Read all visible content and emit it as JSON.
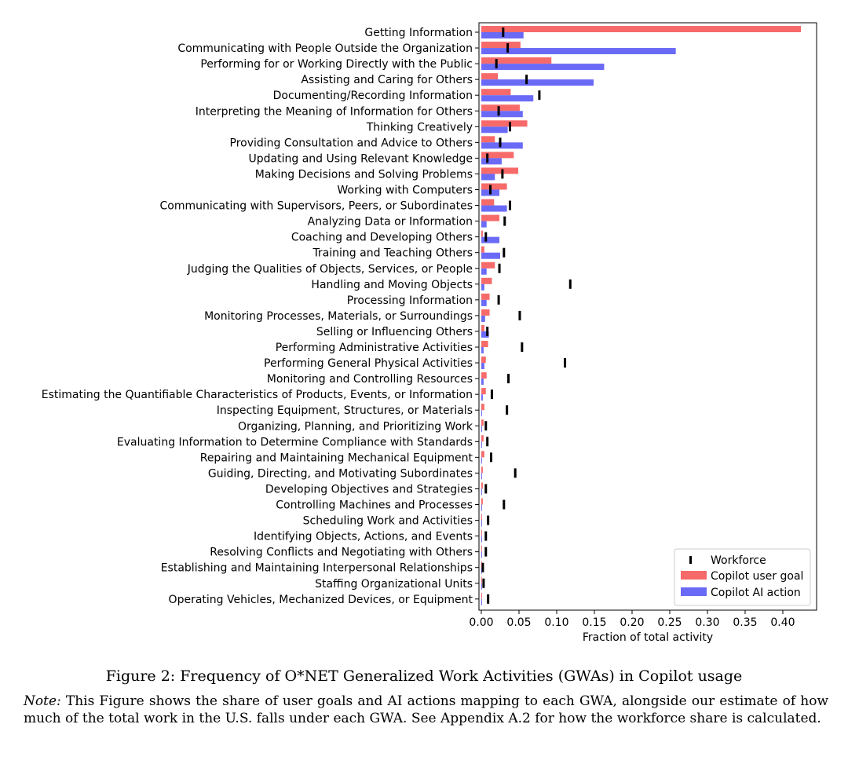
{
  "chart_data": {
    "type": "bar",
    "orientation": "horizontal",
    "xlabel": "Fraction of total activity",
    "xlim": [
      0,
      0.45
    ],
    "xticks": [
      "0.00",
      "0.05",
      "0.10",
      "0.15",
      "0.20",
      "0.25",
      "0.30",
      "0.35",
      "0.40"
    ],
    "legend": {
      "placement": "lower-right",
      "entries": [
        "Workforce",
        "Copilot user goal",
        "Copilot AI action"
      ]
    },
    "colors": {
      "user_goal": "#f76a6a",
      "ai_action": "#6a6af7",
      "workforce": "#000000"
    },
    "categories": [
      "Getting Information",
      "Communicating with People Outside the Organization",
      "Performing for or Working Directly with the Public",
      "Assisting and Caring for Others",
      "Documenting/Recording Information",
      "Interpreting the Meaning of Information for Others",
      "Thinking Creatively",
      "Providing Consultation and Advice to Others",
      "Updating and Using Relevant Knowledge",
      "Making Decisions and Solving Problems",
      "Working with Computers",
      "Communicating with Supervisors, Peers, or Subordinates",
      "Analyzing Data or Information",
      "Coaching and Developing Others",
      "Training and Teaching Others",
      "Judging the Qualities of Objects, Services, or People",
      "Handling and Moving Objects",
      "Processing Information",
      "Monitoring Processes, Materials, or Surroundings",
      "Selling or Influencing Others",
      "Performing Administrative Activities",
      "Performing General Physical Activities",
      "Monitoring and Controlling Resources",
      "Estimating the Quantifiable Characteristics of Products, Events, or Information",
      "Inspecting Equipment, Structures, or Materials",
      "Organizing, Planning, and Prioritizing Work",
      "Evaluating Information to Determine Compliance with Standards",
      "Repairing and Maintaining Mechanical Equipment",
      "Guiding, Directing, and Motivating Subordinates",
      "Developing Objectives and Strategies",
      "Controlling Machines and Processes",
      "Scheduling Work and Activities",
      "Identifying Objects, Actions, and Events",
      "Resolving Conflicts and Negotiating with Others",
      "Establishing and Maintaining Interpersonal Relationships",
      "Staffing Organizational Units",
      "Operating Vehicles, Mechanized Devices, or Equipment"
    ],
    "series": [
      {
        "name": "Copilot user goal",
        "values": [
          0.424,
          0.052,
          0.093,
          0.022,
          0.039,
          0.051,
          0.061,
          0.018,
          0.043,
          0.049,
          0.034,
          0.017,
          0.024,
          0.002,
          0.004,
          0.018,
          0.014,
          0.011,
          0.011,
          0.004,
          0.009,
          0.006,
          0.007,
          0.006,
          0.004,
          0.003,
          0.003,
          0.004,
          0.002,
          0.002,
          0.002,
          0.001,
          0.001,
          0.001,
          0.001,
          0.001,
          0.001
        ]
      },
      {
        "name": "Copilot AI action",
        "values": [
          0.056,
          0.258,
          0.163,
          0.149,
          0.069,
          0.055,
          0.035,
          0.055,
          0.027,
          0.018,
          0.024,
          0.034,
          0.007,
          0.024,
          0.025,
          0.007,
          0.004,
          0.007,
          0.005,
          0.01,
          0.003,
          0.004,
          0.003,
          0.002,
          0.001,
          0.001,
          0.001,
          0.001,
          0.001,
          0.001,
          0.001,
          0.001,
          0.001,
          0.001,
          0.001,
          0.001,
          0.001
        ]
      },
      {
        "name": "Workforce",
        "values": [
          0.029,
          0.035,
          0.02,
          0.06,
          0.077,
          0.023,
          0.038,
          0.025,
          0.008,
          0.028,
          0.012,
          0.038,
          0.031,
          0.006,
          0.03,
          0.024,
          0.118,
          0.023,
          0.051,
          0.008,
          0.054,
          0.111,
          0.036,
          0.014,
          0.034,
          0.006,
          0.008,
          0.013,
          0.045,
          0.006,
          0.03,
          0.009,
          0.006,
          0.006,
          0.002,
          0.003,
          0.009
        ]
      }
    ]
  },
  "caption": {
    "text": "Figure 2: Frequency of O*NET Generalized Work Activities (GWAs) in Copilot usage"
  },
  "note": {
    "label": "Note:",
    "text": " This Figure shows the share of user goals and AI actions mapping to each GWA, alongside our estimate of how much of the total work in the U.S. falls under each GWA. See Appendix A.2 for how the workforce share is calculated."
  }
}
